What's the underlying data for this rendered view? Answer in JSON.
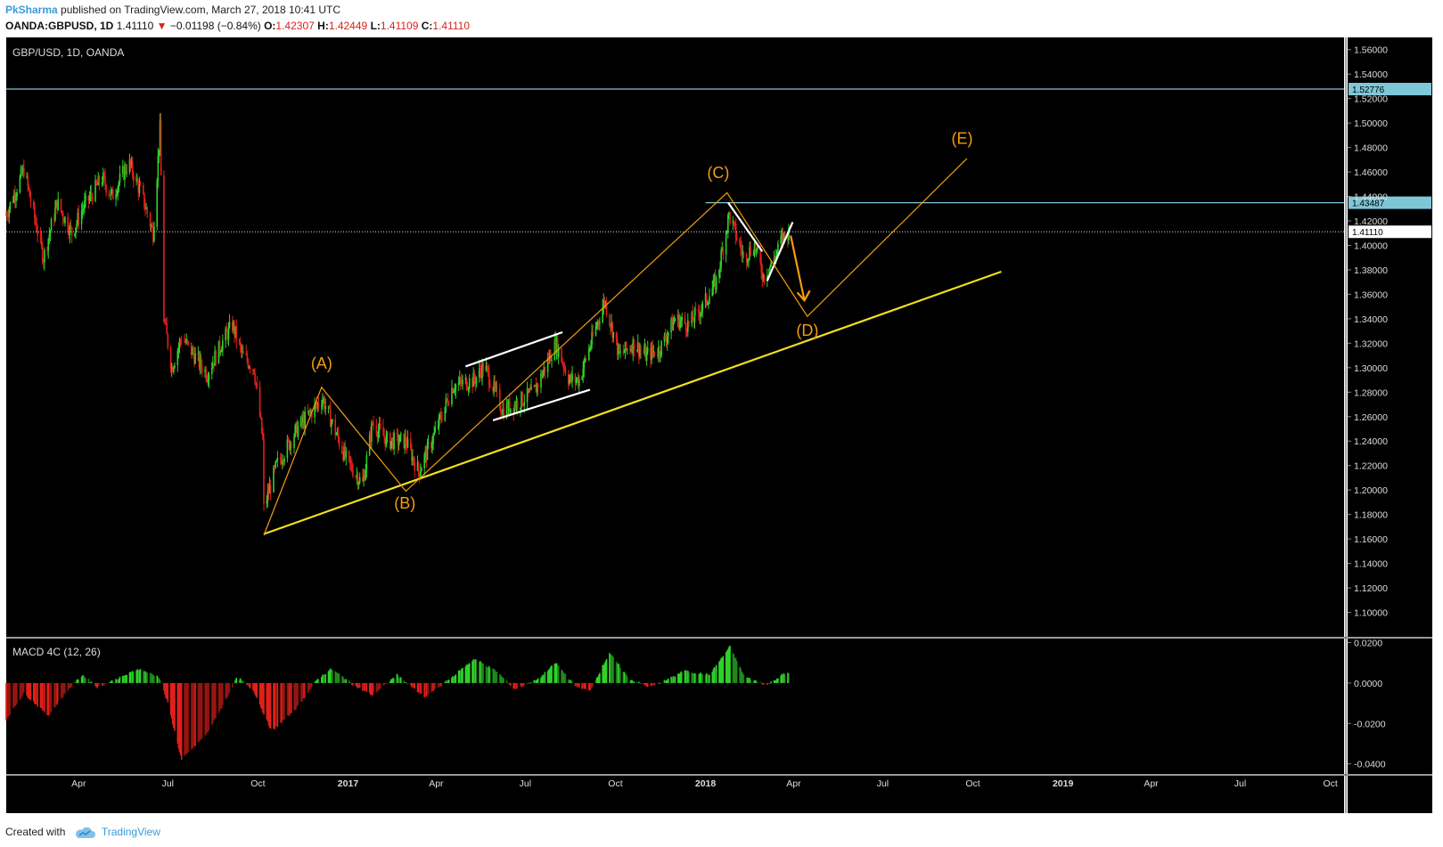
{
  "header": {
    "author": "PkSharma",
    "published_text": "published on TradingView.com, March 27, 2018 10:41 UTC",
    "symbol": "OANDA:GBPUSD, 1D",
    "last": "1.41110",
    "change": "−0.01198 (−0.84%)",
    "open_label": "O:",
    "open": "1.42307",
    "high_label": "H:",
    "high": "1.42449",
    "low_label": "L:",
    "low": "1.41109",
    "close_label": "C:",
    "close": "1.41110"
  },
  "footer": {
    "created_with": "Created with",
    "brand": "TradingView",
    "icon": "tradingview-cloud-icon"
  },
  "colors": {
    "bull": "#2fd22a",
    "bear": "#e0201a",
    "wave": "#f39c12",
    "trendline": "#f2e11e",
    "hline": "#7fc7d6",
    "channel": "#ffffff",
    "background": "#000000",
    "axis_text": "#dddddd"
  },
  "chart_data": [
    {
      "type": "candlestick",
      "title": "GBP/USD, 1D, OANDA",
      "ylim": [
        1.08,
        1.57
      ],
      "y_ticks": [
        "1.56000",
        "1.54000",
        "1.52000",
        "1.50000",
        "1.48000",
        "1.46000",
        "1.44000",
        "1.42000",
        "1.40000",
        "1.38000",
        "1.36000",
        "1.34000",
        "1.32000",
        "1.30000",
        "1.28000",
        "1.26000",
        "1.24000",
        "1.22000",
        "1.20000",
        "1.18000",
        "1.16000",
        "1.14000",
        "1.12000",
        "1.10000"
      ],
      "x_ticks": [
        "Apr",
        "Jul",
        "Oct",
        "2017",
        "Apr",
        "Jul",
        "Oct",
        "2018",
        "Apr",
        "Jul",
        "Oct",
        "2019",
        "Apr",
        "Jul",
        "Oct"
      ],
      "x_tick_dates": [
        "2016-04-01",
        "2016-07-01",
        "2016-10-01",
        "2017-01-01",
        "2017-04-01",
        "2017-07-01",
        "2017-10-01",
        "2018-01-01",
        "2018-04-01",
        "2018-07-01",
        "2018-10-01",
        "2019-01-01",
        "2019-04-01",
        "2019-07-01",
        "2019-10-01"
      ],
      "xlim": [
        "2016-01-18",
        "2019-10-15"
      ],
      "last_price": 1.4111,
      "last_price_label": "1.41110",
      "price_path": [
        [
          "2016-01-18",
          1.425
        ],
        [
          "2016-02-05",
          1.462
        ],
        [
          "2016-02-25",
          1.39
        ],
        [
          "2016-03-10",
          1.435
        ],
        [
          "2016-03-25",
          1.41
        ],
        [
          "2016-04-05",
          1.43
        ],
        [
          "2016-04-25",
          1.455
        ],
        [
          "2016-05-05",
          1.44
        ],
        [
          "2016-05-22",
          1.468
        ],
        [
          "2016-06-05",
          1.44
        ],
        [
          "2016-06-16",
          1.41
        ],
        [
          "2016-06-23",
          1.495
        ],
        [
          "2016-06-27",
          1.34
        ],
        [
          "2016-07-05",
          1.3
        ],
        [
          "2016-07-15",
          1.325
        ],
        [
          "2016-08-10",
          1.295
        ],
        [
          "2016-08-25",
          1.32
        ],
        [
          "2016-09-05",
          1.335
        ],
        [
          "2016-09-15",
          1.31
        ],
        [
          "2016-09-27",
          1.3
        ],
        [
          "2016-10-06",
          1.24
        ],
        [
          "2016-10-07",
          1.185
        ],
        [
          "2016-10-20",
          1.22
        ],
        [
          "2016-11-10",
          1.25
        ],
        [
          "2016-12-06",
          1.275
        ],
        [
          "2016-12-30",
          1.225
        ],
        [
          "2017-01-16",
          1.205
        ],
        [
          "2017-01-26",
          1.255
        ],
        [
          "2017-02-10",
          1.24
        ],
        [
          "2017-03-01",
          1.24
        ],
        [
          "2017-03-14",
          1.215
        ],
        [
          "2017-03-30",
          1.245
        ],
        [
          "2017-04-18",
          1.285
        ],
        [
          "2017-05-10",
          1.29
        ],
        [
          "2017-05-20",
          1.302
        ],
        [
          "2017-06-08",
          1.265
        ],
        [
          "2017-06-20",
          1.27
        ],
        [
          "2017-07-10",
          1.28
        ],
        [
          "2017-08-01",
          1.32
        ],
        [
          "2017-08-15",
          1.29
        ],
        [
          "2017-08-25",
          1.29
        ],
        [
          "2017-09-20",
          1.355
        ],
        [
          "2017-10-05",
          1.31
        ],
        [
          "2017-10-20",
          1.32
        ],
        [
          "2017-11-01",
          1.31
        ],
        [
          "2017-11-15",
          1.315
        ],
        [
          "2017-12-01",
          1.34
        ],
        [
          "2017-12-15",
          1.335
        ],
        [
          "2017-12-29",
          1.35
        ],
        [
          "2018-01-12",
          1.37
        ],
        [
          "2018-01-25",
          1.425
        ],
        [
          "2018-02-09",
          1.39
        ],
        [
          "2018-02-20",
          1.4
        ],
        [
          "2018-03-01",
          1.375
        ],
        [
          "2018-03-10",
          1.385
        ],
        [
          "2018-03-20",
          1.405
        ],
        [
          "2018-03-27",
          1.4111
        ]
      ],
      "horizontal_lines": [
        {
          "value": 1.52776,
          "label": "1.52776",
          "from": "2016-01-18",
          "to": "2019-10-15"
        },
        {
          "value": 1.43487,
          "label": "1.43487",
          "from": "2018-01-01",
          "to": "2019-10-15"
        }
      ],
      "trendline": [
        [
          "2016-10-07",
          1.164
        ],
        [
          "2018-10-30",
          1.3785
        ]
      ],
      "wave_path": [
        [
          "2016-10-07",
          1.163
        ],
        [
          "2016-12-05",
          1.284
        ],
        [
          "2017-03-01",
          1.199
        ],
        [
          "2018-01-23",
          1.443
        ],
        [
          "2018-04-15",
          1.342
        ],
        [
          "2018-09-25",
          1.471
        ]
      ],
      "wave_arrow": [
        [
          "2018-03-29",
          1.408
        ],
        [
          "2018-04-12",
          1.355
        ]
      ],
      "wave_labels": [
        {
          "text": "(A)",
          "date": "2016-12-05",
          "value": 1.299
        },
        {
          "text": "(B)",
          "date": "2017-02-28",
          "value": 1.185
        },
        {
          "text": "(C)",
          "date": "2018-01-14",
          "value": 1.455
        },
        {
          "text": "(D)",
          "date": "2018-04-15",
          "value": 1.326
        },
        {
          "text": "(E)",
          "date": "2018-09-20",
          "value": 1.483
        }
      ],
      "channel_lines": [
        [
          [
            "2017-05-01",
            1.301
          ],
          [
            "2017-08-08",
            1.329
          ]
        ],
        [
          [
            "2017-05-29",
            1.257
          ],
          [
            "2017-09-05",
            1.282
          ]
        ],
        [
          [
            "2018-01-24",
            1.435
          ],
          [
            "2018-02-28",
            1.395
          ]
        ],
        [
          [
            "2018-03-05",
            1.371
          ],
          [
            "2018-03-31",
            1.419
          ]
        ]
      ]
    },
    {
      "type": "histogram",
      "title": "MACD 4C (12, 26)",
      "ylim": [
        -0.045,
        0.022
      ],
      "y_ticks": [
        "0.0200",
        "0.0000",
        "-0.0200",
        "-0.0400"
      ],
      "macd_path": [
        [
          "2016-01-18",
          -0.018
        ],
        [
          "2016-02-05",
          -0.005
        ],
        [
          "2016-03-01",
          -0.016
        ],
        [
          "2016-03-20",
          -0.004
        ],
        [
          "2016-04-05",
          0.004
        ],
        [
          "2016-04-20",
          -0.002
        ],
        [
          "2016-05-15",
          0.003
        ],
        [
          "2016-06-01",
          0.007
        ],
        [
          "2016-06-22",
          0.003
        ],
        [
          "2016-07-01",
          -0.01
        ],
        [
          "2016-07-15",
          -0.038
        ],
        [
          "2016-08-10",
          -0.025
        ],
        [
          "2016-08-25",
          -0.012
        ],
        [
          "2016-09-10",
          0.003
        ],
        [
          "2016-09-27",
          -0.004
        ],
        [
          "2016-10-15",
          -0.024
        ],
        [
          "2016-11-10",
          -0.012
        ],
        [
          "2016-12-01",
          0.002
        ],
        [
          "2016-12-15",
          0.007
        ],
        [
          "2017-01-10",
          -0.002
        ],
        [
          "2017-01-26",
          -0.006
        ],
        [
          "2017-02-20",
          0.004
        ],
        [
          "2017-03-20",
          -0.007
        ],
        [
          "2017-04-15",
          0.002
        ],
        [
          "2017-05-10",
          0.012
        ],
        [
          "2017-06-01",
          0.006
        ],
        [
          "2017-06-20",
          -0.003
        ],
        [
          "2017-07-15",
          0.002
        ],
        [
          "2017-08-01",
          0.01
        ],
        [
          "2017-08-20",
          -0.001
        ],
        [
          "2017-09-05",
          -0.004
        ],
        [
          "2017-09-25",
          0.015
        ],
        [
          "2017-10-15",
          0.002
        ],
        [
          "2017-11-05",
          -0.002
        ],
        [
          "2017-11-25",
          0.002
        ],
        [
          "2017-12-10",
          0.006
        ],
        [
          "2018-01-05",
          0.004
        ],
        [
          "2018-01-26",
          0.018
        ],
        [
          "2018-02-10",
          0.003
        ],
        [
          "2018-03-05",
          -0.001
        ],
        [
          "2018-03-20",
          0.004
        ],
        [
          "2018-03-27",
          0.005
        ]
      ],
      "bull_color": "#2fd22a",
      "bear_color": "#e0201a"
    }
  ]
}
